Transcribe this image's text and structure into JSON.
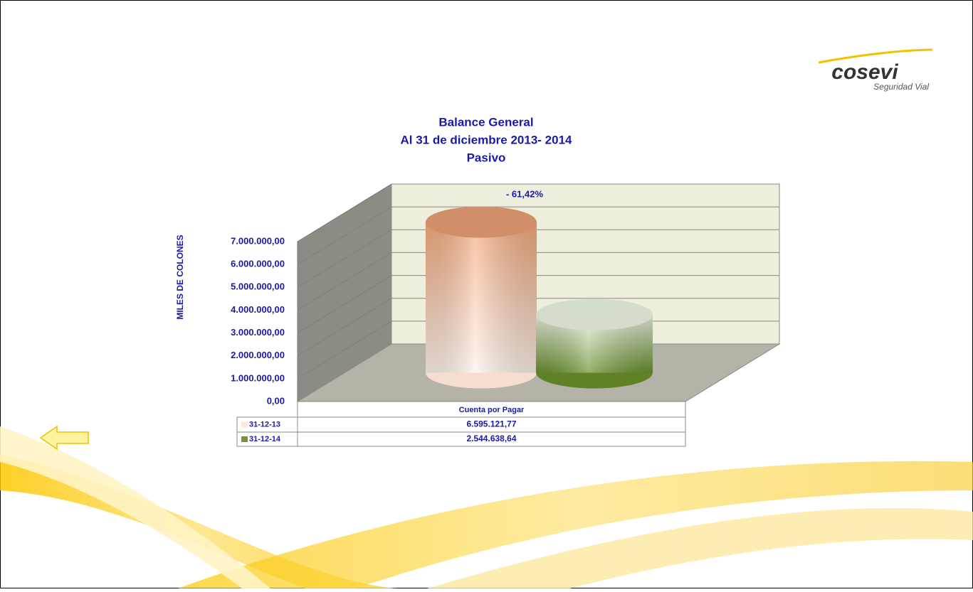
{
  "logo": {
    "name": "cosevi",
    "tagline": "Seguridad Vial"
  },
  "chart_data": {
    "type": "bar",
    "title": [
      "Balance General",
      "Al  31 de diciembre 2013- 2014",
      "Pasivo"
    ],
    "y_label": "MILES DE COLONES",
    "annotation": "- 61,42%",
    "categories": [
      "Cuenta por Pagar"
    ],
    "series": [
      {
        "name": "31-12-13",
        "color": "#f4a97b",
        "values": [
          6595121.77
        ],
        "value_labels": [
          "6.595.121,77"
        ]
      },
      {
        "name": "31-12-14",
        "color": "#77933c",
        "values": [
          2544638.64
        ],
        "value_labels": [
          "2.544.638,64"
        ]
      }
    ],
    "ylim": [
      0,
      7000000
    ],
    "yticks": [
      {
        "value": 0,
        "label": "0,00"
      },
      {
        "value": 1000000,
        "label": "1.000.000,00"
      },
      {
        "value": 2000000,
        "label": "2.000.000,00"
      },
      {
        "value": 3000000,
        "label": "3.000.000,00"
      },
      {
        "value": 4000000,
        "label": "4.000.000,00"
      },
      {
        "value": 5000000,
        "label": "5.000.000,00"
      },
      {
        "value": 6000000,
        "label": "6.000.000,00"
      },
      {
        "value": 7000000,
        "label": "7.000.000,00"
      }
    ],
    "grid": true
  }
}
